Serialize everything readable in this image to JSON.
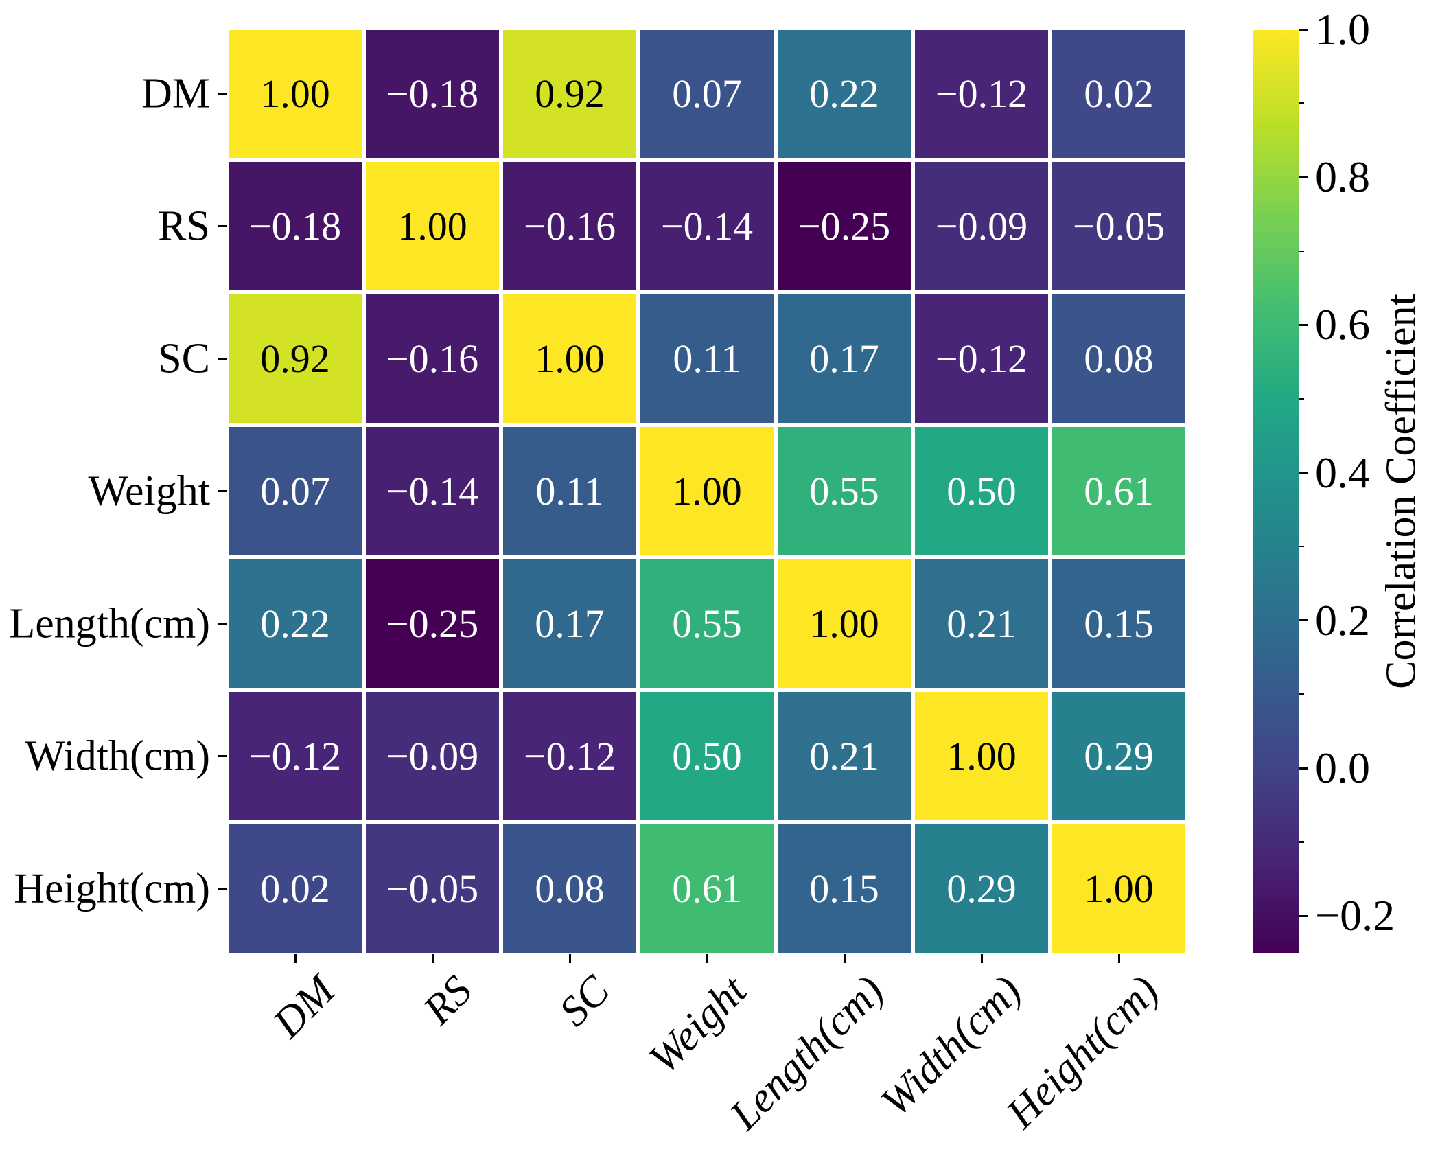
{
  "figure": {
    "background": "#ffffff",
    "text_color": "#000000"
  },
  "chart_data": {
    "type": "heatmap",
    "title": "",
    "categories": [
      "DM",
      "RS",
      "SC",
      "Weight",
      "Length(cm)",
      "Width(cm)",
      "Height(cm)"
    ],
    "matrix": [
      [
        1.0,
        -0.18,
        0.92,
        0.07,
        0.22,
        -0.12,
        0.02
      ],
      [
        -0.18,
        1.0,
        -0.16,
        -0.14,
        -0.25,
        -0.09,
        -0.05
      ],
      [
        0.92,
        -0.16,
        1.0,
        0.11,
        0.17,
        -0.12,
        0.08
      ],
      [
        0.07,
        -0.14,
        0.11,
        1.0,
        0.55,
        0.5,
        0.61
      ],
      [
        0.22,
        -0.25,
        0.17,
        0.55,
        1.0,
        0.21,
        0.15
      ],
      [
        -0.12,
        -0.09,
        -0.12,
        0.5,
        0.21,
        1.0,
        0.29
      ],
      [
        0.02,
        -0.05,
        0.08,
        0.61,
        0.15,
        0.29,
        1.0
      ]
    ],
    "value_decimals": 2,
    "colorbar": {
      "label": "Correlation Coefficient",
      "ticks": [
        1.0,
        0.8,
        0.6,
        0.4,
        0.2,
        0.0,
        -0.2
      ],
      "minor_ticks": [
        0.9,
        0.7,
        0.5,
        0.3,
        0.1,
        -0.1
      ],
      "vmin": -0.25,
      "vmax": 1.0
    },
    "colormap": {
      "name": "viridis",
      "stops": [
        "#440154",
        "#482475",
        "#414487",
        "#355f8d",
        "#2a788e",
        "#21918c",
        "#22a884",
        "#44bf70",
        "#7ad151",
        "#bddf26",
        "#fde725"
      ]
    },
    "cell_text_colors": {
      "on_dark": "#ffffff",
      "on_light": "#000000"
    },
    "legend_position": "right",
    "grid_gap_color": "#ffffff"
  }
}
